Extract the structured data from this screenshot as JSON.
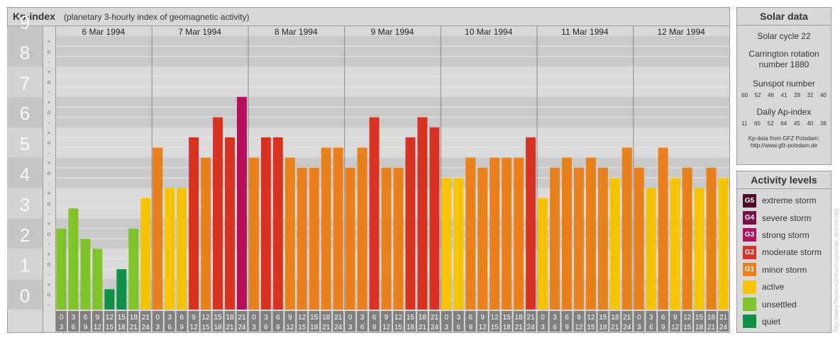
{
  "title": "Kp-index",
  "subtitle": "(planetary 3-hourly index of geomagnetic activity)",
  "chart_data": {
    "type": "bar",
    "title": "Kp-index",
    "subtitle": "(planetary 3-hourly index of geomagnetic activity)",
    "ylim": [
      0,
      9
    ],
    "y_ticks": [
      "0",
      "1",
      "2",
      "3",
      "4",
      "5",
      "6",
      "7",
      "8",
      "9"
    ],
    "third_marks": [
      "+",
      "o",
      "-"
    ],
    "days": [
      {
        "date": "6 Mar 1994",
        "values": [
          2.67,
          3.33,
          2.33,
          2.0,
          0.67,
          1.33,
          2.67,
          3.67
        ]
      },
      {
        "date": "7 Mar 1994",
        "values": [
          5.33,
          4.0,
          4.0,
          5.67,
          5.0,
          6.33,
          5.67,
          7.0
        ]
      },
      {
        "date": "8 Mar 1994",
        "values": [
          5.0,
          5.67,
          5.67,
          5.0,
          4.67,
          4.67,
          5.33,
          5.33
        ]
      },
      {
        "date": "9 Mar 1994",
        "values": [
          4.67,
          5.33,
          6.33,
          4.67,
          4.67,
          5.67,
          6.33,
          6.0
        ]
      },
      {
        "date": "10 Mar 1994",
        "values": [
          4.33,
          4.33,
          5.0,
          4.67,
          5.0,
          5.0,
          5.0,
          5.67
        ]
      },
      {
        "date": "11 Mar 1994",
        "values": [
          3.67,
          4.67,
          5.0,
          4.67,
          5.0,
          4.67,
          4.33,
          5.33
        ]
      },
      {
        "date": "12 Mar 1994",
        "values": [
          4.67,
          4.0,
          5.33,
          4.33,
          4.67,
          4.0,
          4.67,
          4.33
        ]
      }
    ],
    "interval_start": [
      "0",
      "3",
      "6",
      "9",
      "12",
      "15",
      "18",
      "21"
    ],
    "interval_end": [
      "3",
      "6",
      "9",
      "12",
      "15",
      "18",
      "21",
      "24"
    ]
  },
  "solar": {
    "title": "Solar data",
    "cycle": "Solar cycle 22",
    "carrington_line1": "Carrington rotation",
    "carrington_line2": "number 1880",
    "sunspot_title": "Sunspot number",
    "sunspot": [
      "60",
      "52",
      "46",
      "41",
      "29",
      "32",
      "40"
    ],
    "ap_title": "Daily Ap-index",
    "ap": [
      "11",
      "65",
      "52",
      "64",
      "45",
      "40",
      "36"
    ],
    "credit1": "Kp-data from GFZ Potsdam:",
    "credit2": "http://www.gfz-potsdam.de"
  },
  "activity": {
    "title": "Activity levels",
    "levels": [
      {
        "code": "G5",
        "label": "extreme storm",
        "color": "#4d0a2a"
      },
      {
        "code": "G4",
        "label": "severe storm",
        "color": "#7a0d4c"
      },
      {
        "code": "G3",
        "label": "strong storm",
        "color": "#b5105e"
      },
      {
        "code": "G2",
        "label": "moderate storm",
        "color": "#d93222"
      },
      {
        "code": "G1",
        "label": "minor storm",
        "color": "#e8801c"
      },
      {
        "code": "",
        "label": "active",
        "color": "#f8c400"
      },
      {
        "code": "",
        "label": "unsettled",
        "color": "#80c22a"
      },
      {
        "code": "",
        "label": "quiet",
        "color": "#119048"
      }
    ]
  },
  "watermark": "http://www.fleuse-eu/ferar/eugraz/ap_archive.php"
}
